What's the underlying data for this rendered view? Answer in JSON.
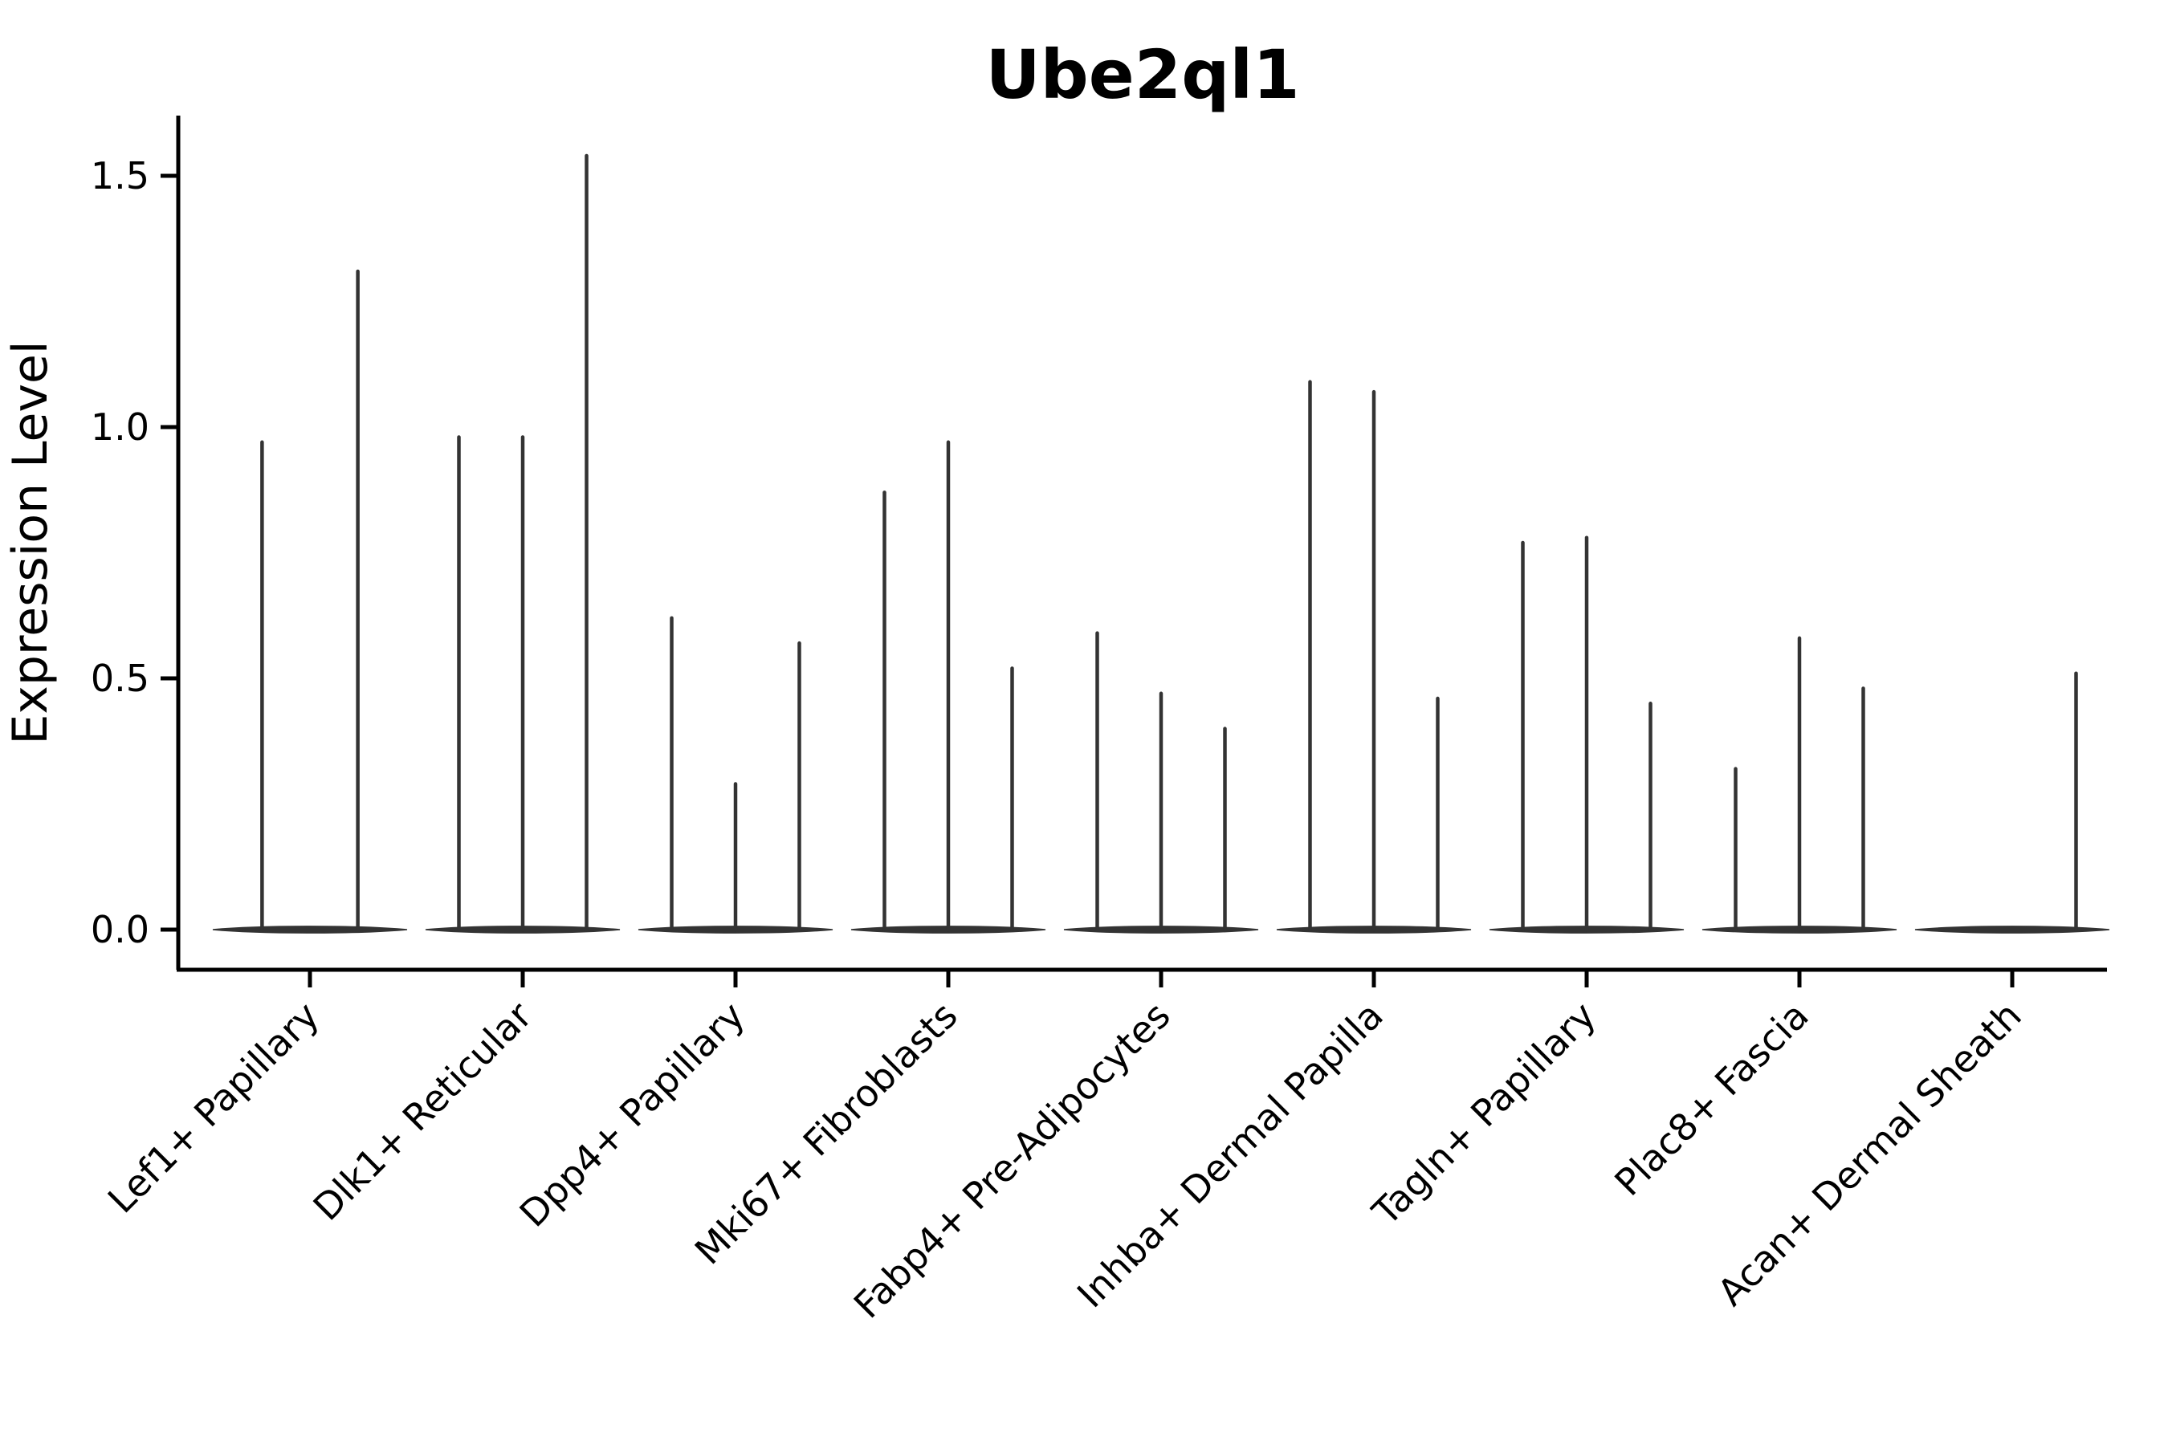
{
  "chart_data": {
    "type": "violin",
    "title": "Ube2ql1",
    "ylabel": "Expression Level",
    "xlabel": "",
    "yticks": [
      0.0,
      0.5,
      1.0,
      1.5
    ],
    "ylim": [
      -0.08,
      1.62
    ],
    "grid": false,
    "legend": false,
    "categories": [
      "Lef1+ Papillary",
      "Dlk1+ Reticular",
      "Dpp4+ Papillary",
      "Mki67+ Fibroblasts",
      "Fabp4+ Pre-Adipocytes",
      "Inhba+ Dermal Papilla",
      "Tagln+ Papillary",
      "Plac8+ Fascia",
      "Acan+ Dermal Sheath"
    ],
    "groups": [
      {
        "label": "Lef1+ Papillary",
        "spikes": [
          {
            "pos": -0.225,
            "max": 0.97
          },
          {
            "pos": 0.225,
            "max": 1.31
          }
        ]
      },
      {
        "label": "Dlk1+ Reticular",
        "spikes": [
          {
            "pos": -0.3,
            "max": 0.98
          },
          {
            "pos": 0,
            "max": 0.98
          },
          {
            "pos": 0.3,
            "max": 1.54
          }
        ]
      },
      {
        "label": "Dpp4+ Papillary",
        "spikes": [
          {
            "pos": -0.3,
            "max": 0.62
          },
          {
            "pos": 0,
            "max": 0.29
          },
          {
            "pos": 0.3,
            "max": 0.57
          }
        ]
      },
      {
        "label": "Mki67+ Fibroblasts",
        "spikes": [
          {
            "pos": -0.3,
            "max": 0.87
          },
          {
            "pos": 0,
            "max": 0.97
          },
          {
            "pos": 0.3,
            "max": 0.52
          }
        ]
      },
      {
        "label": "Fabp4+ Pre-Adipocytes",
        "spikes": [
          {
            "pos": -0.3,
            "max": 0.59
          },
          {
            "pos": 0,
            "max": 0.47
          },
          {
            "pos": 0.3,
            "max": 0.4
          }
        ]
      },
      {
        "label": "Inhba+ Dermal Papilla",
        "spikes": [
          {
            "pos": -0.3,
            "max": 1.09
          },
          {
            "pos": 0,
            "max": 1.07
          },
          {
            "pos": 0.3,
            "max": 0.46
          }
        ]
      },
      {
        "label": "Tagln+ Papillary",
        "spikes": [
          {
            "pos": -0.3,
            "max": 0.77
          },
          {
            "pos": 0,
            "max": 0.78
          },
          {
            "pos": 0.3,
            "max": 0.45
          }
        ]
      },
      {
        "label": "Plac8+ Fascia",
        "spikes": [
          {
            "pos": -0.3,
            "max": 0.32
          },
          {
            "pos": 0,
            "max": 0.58
          },
          {
            "pos": 0.3,
            "max": 0.48
          }
        ]
      },
      {
        "label": "Acan+ Dermal Sheath",
        "spikes": [
          {
            "pos": 0.3,
            "max": 0.51
          }
        ]
      }
    ],
    "colors": {
      "violin": "#333333",
      "axis": "#000000",
      "text": "#000000",
      "background": "#ffffff"
    }
  }
}
